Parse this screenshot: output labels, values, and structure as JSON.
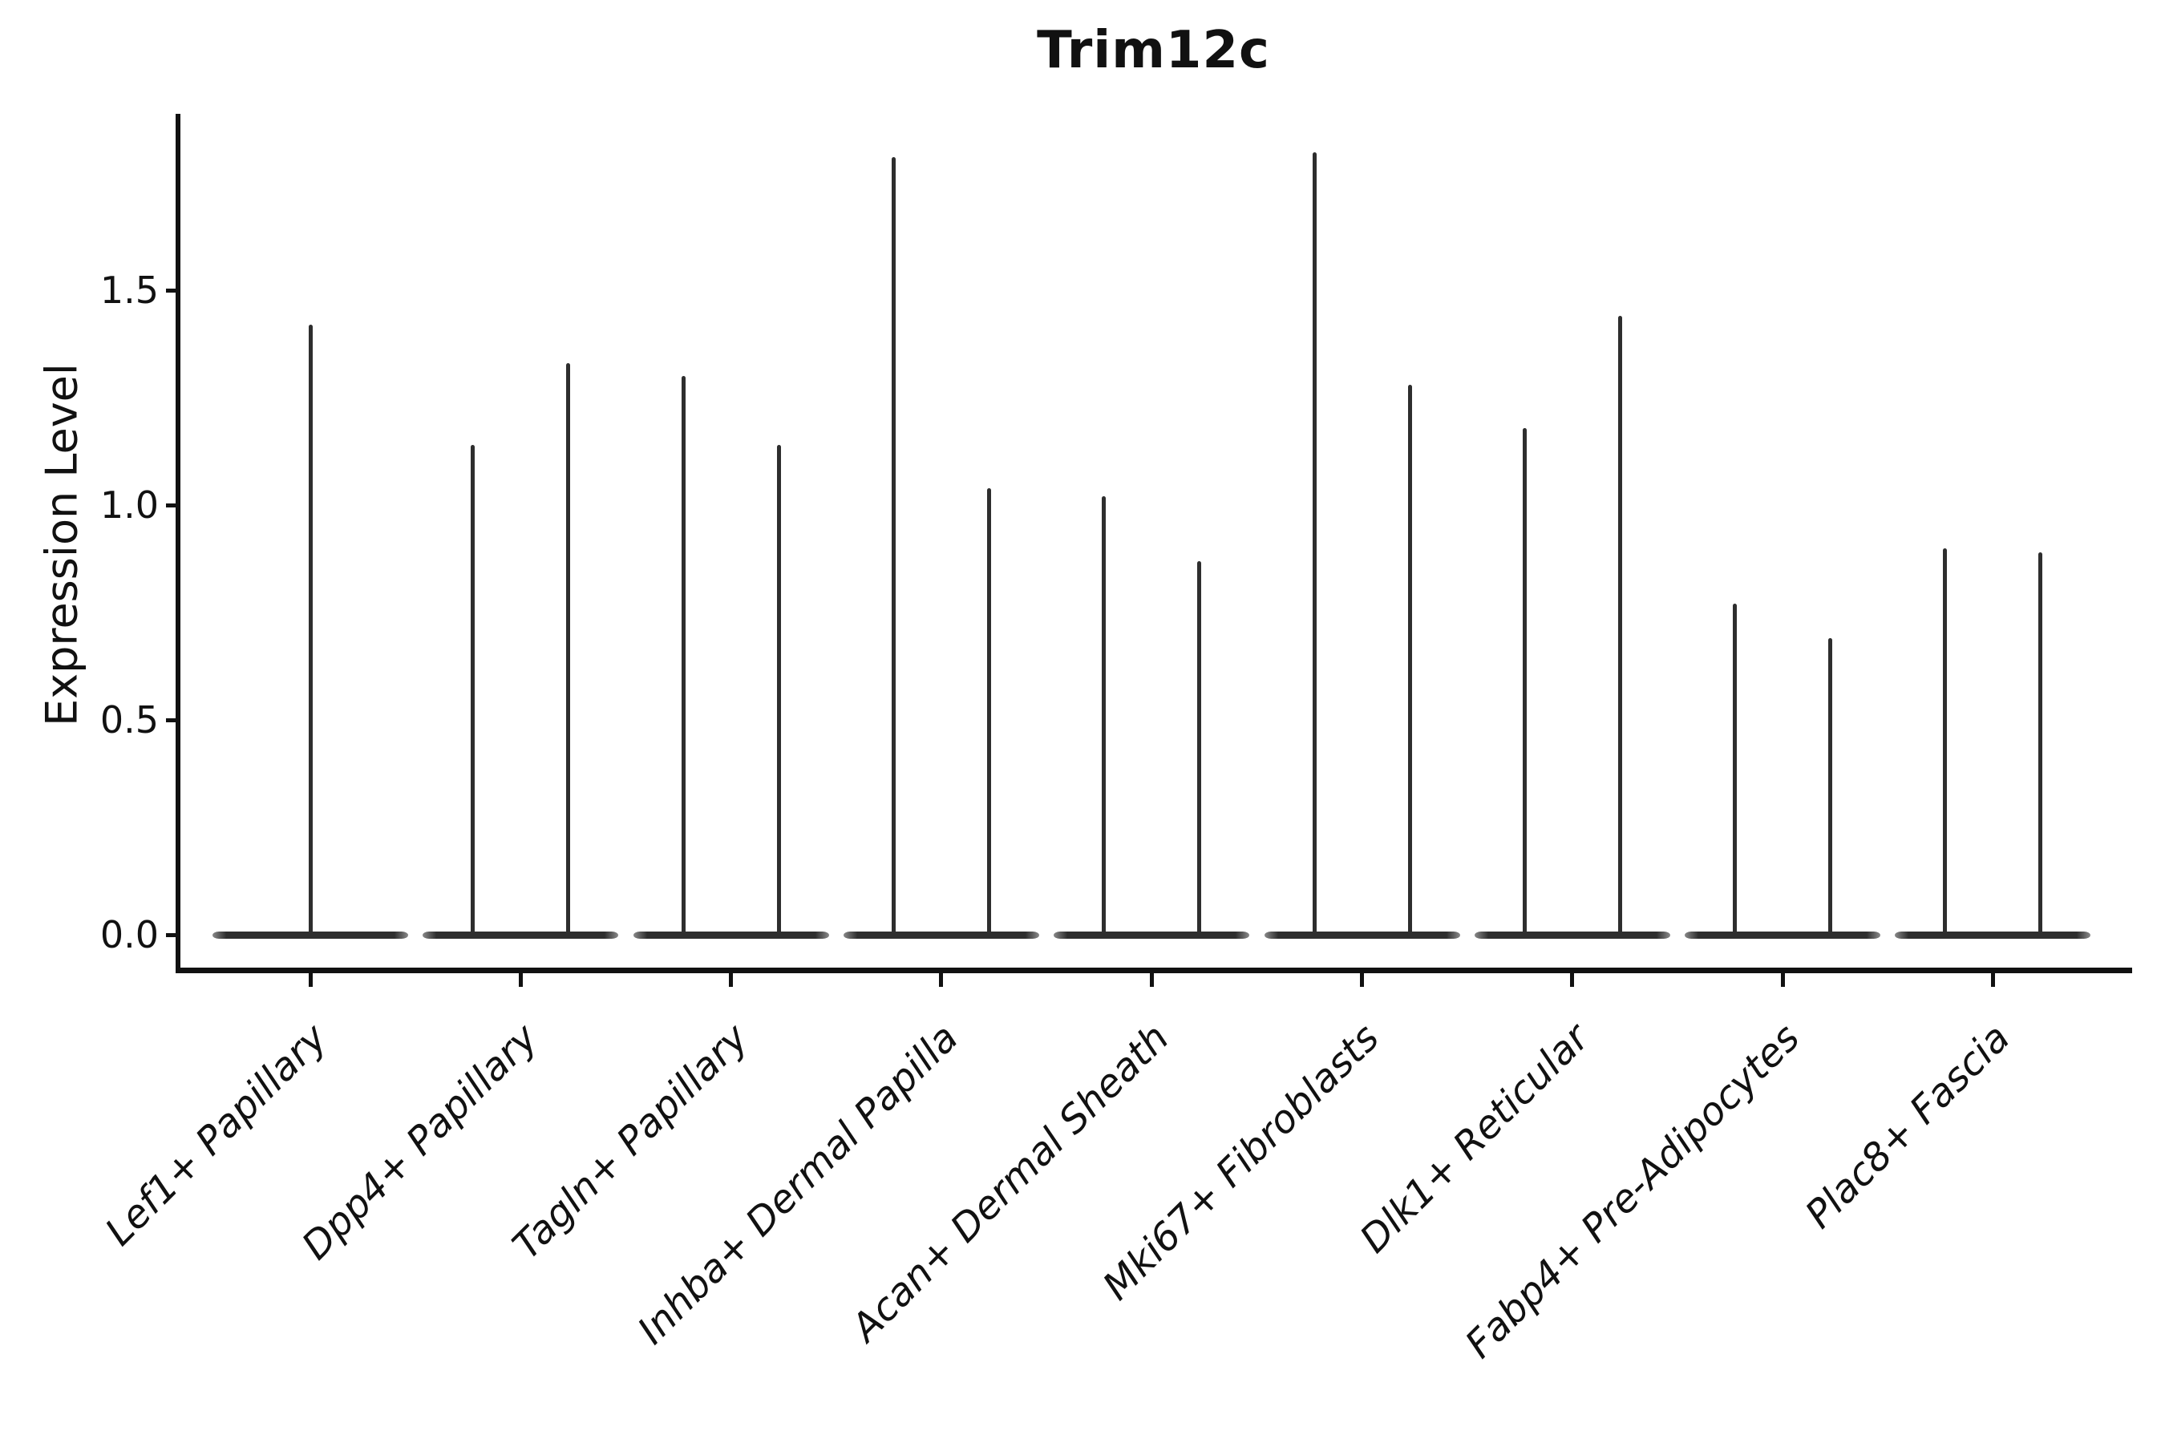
{
  "title": "Trim12c",
  "axes": {
    "ylabel": "Expression Level",
    "ytick_labels": [
      "0.0",
      "0.5",
      "1.0",
      "1.5"
    ]
  },
  "chart_data": {
    "type": "violin",
    "title": "Trim12c",
    "xlabel": "",
    "ylabel": "Expression Level",
    "ylim": [
      -0.09,
      1.91
    ],
    "yticks": [
      0.0,
      0.5,
      1.0,
      1.5
    ],
    "grid": false,
    "legend": null,
    "baseline_value": 0.0,
    "note": "Each violin is a flat wide base at expression 0 with a thin spike to its maximum expression; first category has a single centered violin, all others have two violins",
    "categories": [
      "Lef1+ Papillary",
      "Dpp4+ Papillary",
      "Tagln+ Papillary",
      "Inhba+ Dermal Papilla",
      "Acan+ Dermal Sheath",
      "Mki67+ Fibroblasts",
      "Dlk1+ Reticular",
      "Fabp4+ Pre-Adipocytes",
      "Plac8+ Fascia"
    ],
    "series": [
      {
        "category": "Lef1+ Papillary",
        "violin_maxima": [
          1.42
        ]
      },
      {
        "category": "Dpp4+ Papillary",
        "violin_maxima": [
          1.14,
          1.33
        ]
      },
      {
        "category": "Tagln+ Papillary",
        "violin_maxima": [
          1.3,
          1.14
        ]
      },
      {
        "category": "Inhba+ Dermal Papilla",
        "violin_maxima": [
          1.81,
          1.04
        ]
      },
      {
        "category": "Acan+ Dermal Sheath",
        "violin_maxima": [
          1.02,
          0.87
        ]
      },
      {
        "category": "Mki67+ Fibroblasts",
        "violin_maxima": [
          1.82,
          1.28
        ]
      },
      {
        "category": "Dlk1+ Reticular",
        "violin_maxima": [
          1.18,
          1.44
        ]
      },
      {
        "category": "Fabp4+ Pre-Adipocytes",
        "violin_maxima": [
          0.77,
          0.69
        ]
      },
      {
        "category": "Plac8+ Fascia",
        "violin_maxima": [
          0.9,
          0.89
        ]
      }
    ],
    "colors": {
      "violin": "#2e2e2e",
      "axis": "#111111",
      "background": "#ffffff"
    }
  }
}
